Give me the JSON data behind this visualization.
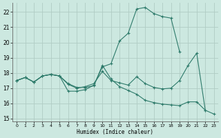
{
  "xlabel": "Humidex (Indice chaleur)",
  "bg_color": "#cce8e0",
  "grid_color": "#b8d8d0",
  "line_color": "#2d7a6a",
  "xlim": [
    -0.5,
    23.5
  ],
  "ylim": [
    14.8,
    22.6
  ],
  "yticks": [
    15,
    16,
    17,
    18,
    19,
    20,
    21,
    22
  ],
  "xticks": [
    0,
    1,
    2,
    3,
    4,
    5,
    6,
    7,
    8,
    9,
    10,
    11,
    12,
    13,
    14,
    15,
    16,
    17,
    18,
    19,
    20,
    21,
    22,
    23
  ],
  "series": [
    {
      "x": [
        0,
        1,
        2,
        3,
        4,
        5,
        6,
        7,
        8,
        9,
        10,
        11,
        12,
        13,
        14,
        15,
        16,
        17,
        18,
        19
      ],
      "y": [
        17.5,
        17.7,
        17.4,
        17.8,
        17.9,
        17.8,
        16.8,
        16.8,
        16.9,
        17.2,
        18.4,
        18.6,
        20.1,
        20.6,
        22.2,
        22.3,
        21.9,
        21.7,
        21.6,
        19.4
      ]
    },
    {
      "x": [
        0,
        1,
        2,
        3,
        4,
        5,
        6,
        7,
        8,
        9,
        10,
        11,
        12,
        13,
        14,
        15,
        16,
        17,
        18,
        19,
        20,
        21,
        22
      ],
      "y": [
        17.5,
        17.7,
        17.4,
        17.8,
        17.9,
        17.8,
        17.3,
        17.05,
        17.05,
        17.15,
        18.5,
        17.6,
        17.1,
        16.85,
        16.6,
        16.2,
        16.05,
        15.95,
        15.9,
        15.85,
        16.1,
        16.1,
        15.55
      ]
    },
    {
      "x": [
        0,
        1,
        2,
        3,
        4,
        5,
        6,
        7,
        8,
        9,
        10,
        11,
        12,
        13,
        14,
        15,
        16,
        17,
        18,
        19,
        20,
        21,
        22,
        23
      ],
      "y": [
        17.5,
        17.7,
        17.4,
        17.8,
        17.9,
        17.8,
        17.25,
        17.0,
        17.1,
        17.3,
        18.1,
        17.5,
        17.35,
        17.2,
        17.75,
        17.3,
        17.05,
        16.95,
        17.0,
        17.5,
        18.5,
        19.3,
        15.55,
        15.3
      ]
    }
  ]
}
